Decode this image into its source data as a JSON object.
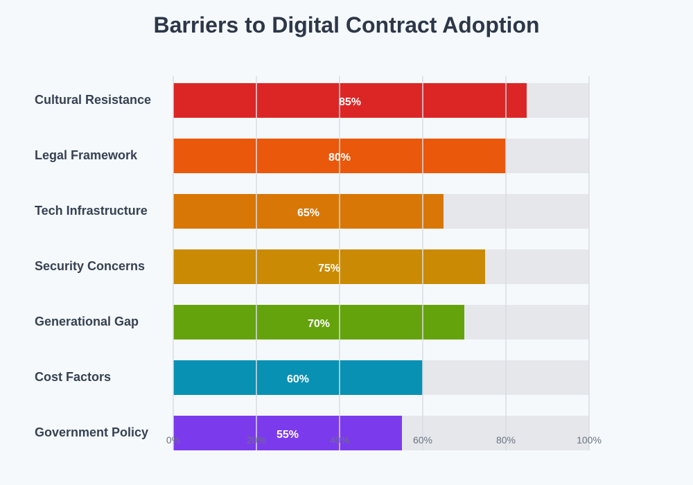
{
  "chart_data": {
    "type": "bar",
    "orientation": "horizontal",
    "title": "Barriers to Digital Contract Adoption",
    "categories": [
      "Cultural Resistance",
      "Legal Framework",
      "Tech Infrastructure",
      "Security Concerns",
      "Generational Gap",
      "Cost Factors",
      "Government Policy"
    ],
    "values": [
      85,
      80,
      65,
      75,
      70,
      60,
      55
    ],
    "value_labels": [
      "85%",
      "80%",
      "65%",
      "75%",
      "70%",
      "60%",
      "55%"
    ],
    "colors": [
      "#dc2626",
      "#ea580c",
      "#d97706",
      "#ca8a04",
      "#65a30d",
      "#0891b2",
      "#7c3aed"
    ],
    "track_color": "#e5e7eb",
    "xlim": [
      0,
      100
    ],
    "xticks": [
      0,
      20,
      40,
      60,
      80,
      100
    ],
    "xtick_labels": [
      "0%",
      "20%",
      "40%",
      "60%",
      "80%",
      "100%"
    ],
    "grid": true
  }
}
